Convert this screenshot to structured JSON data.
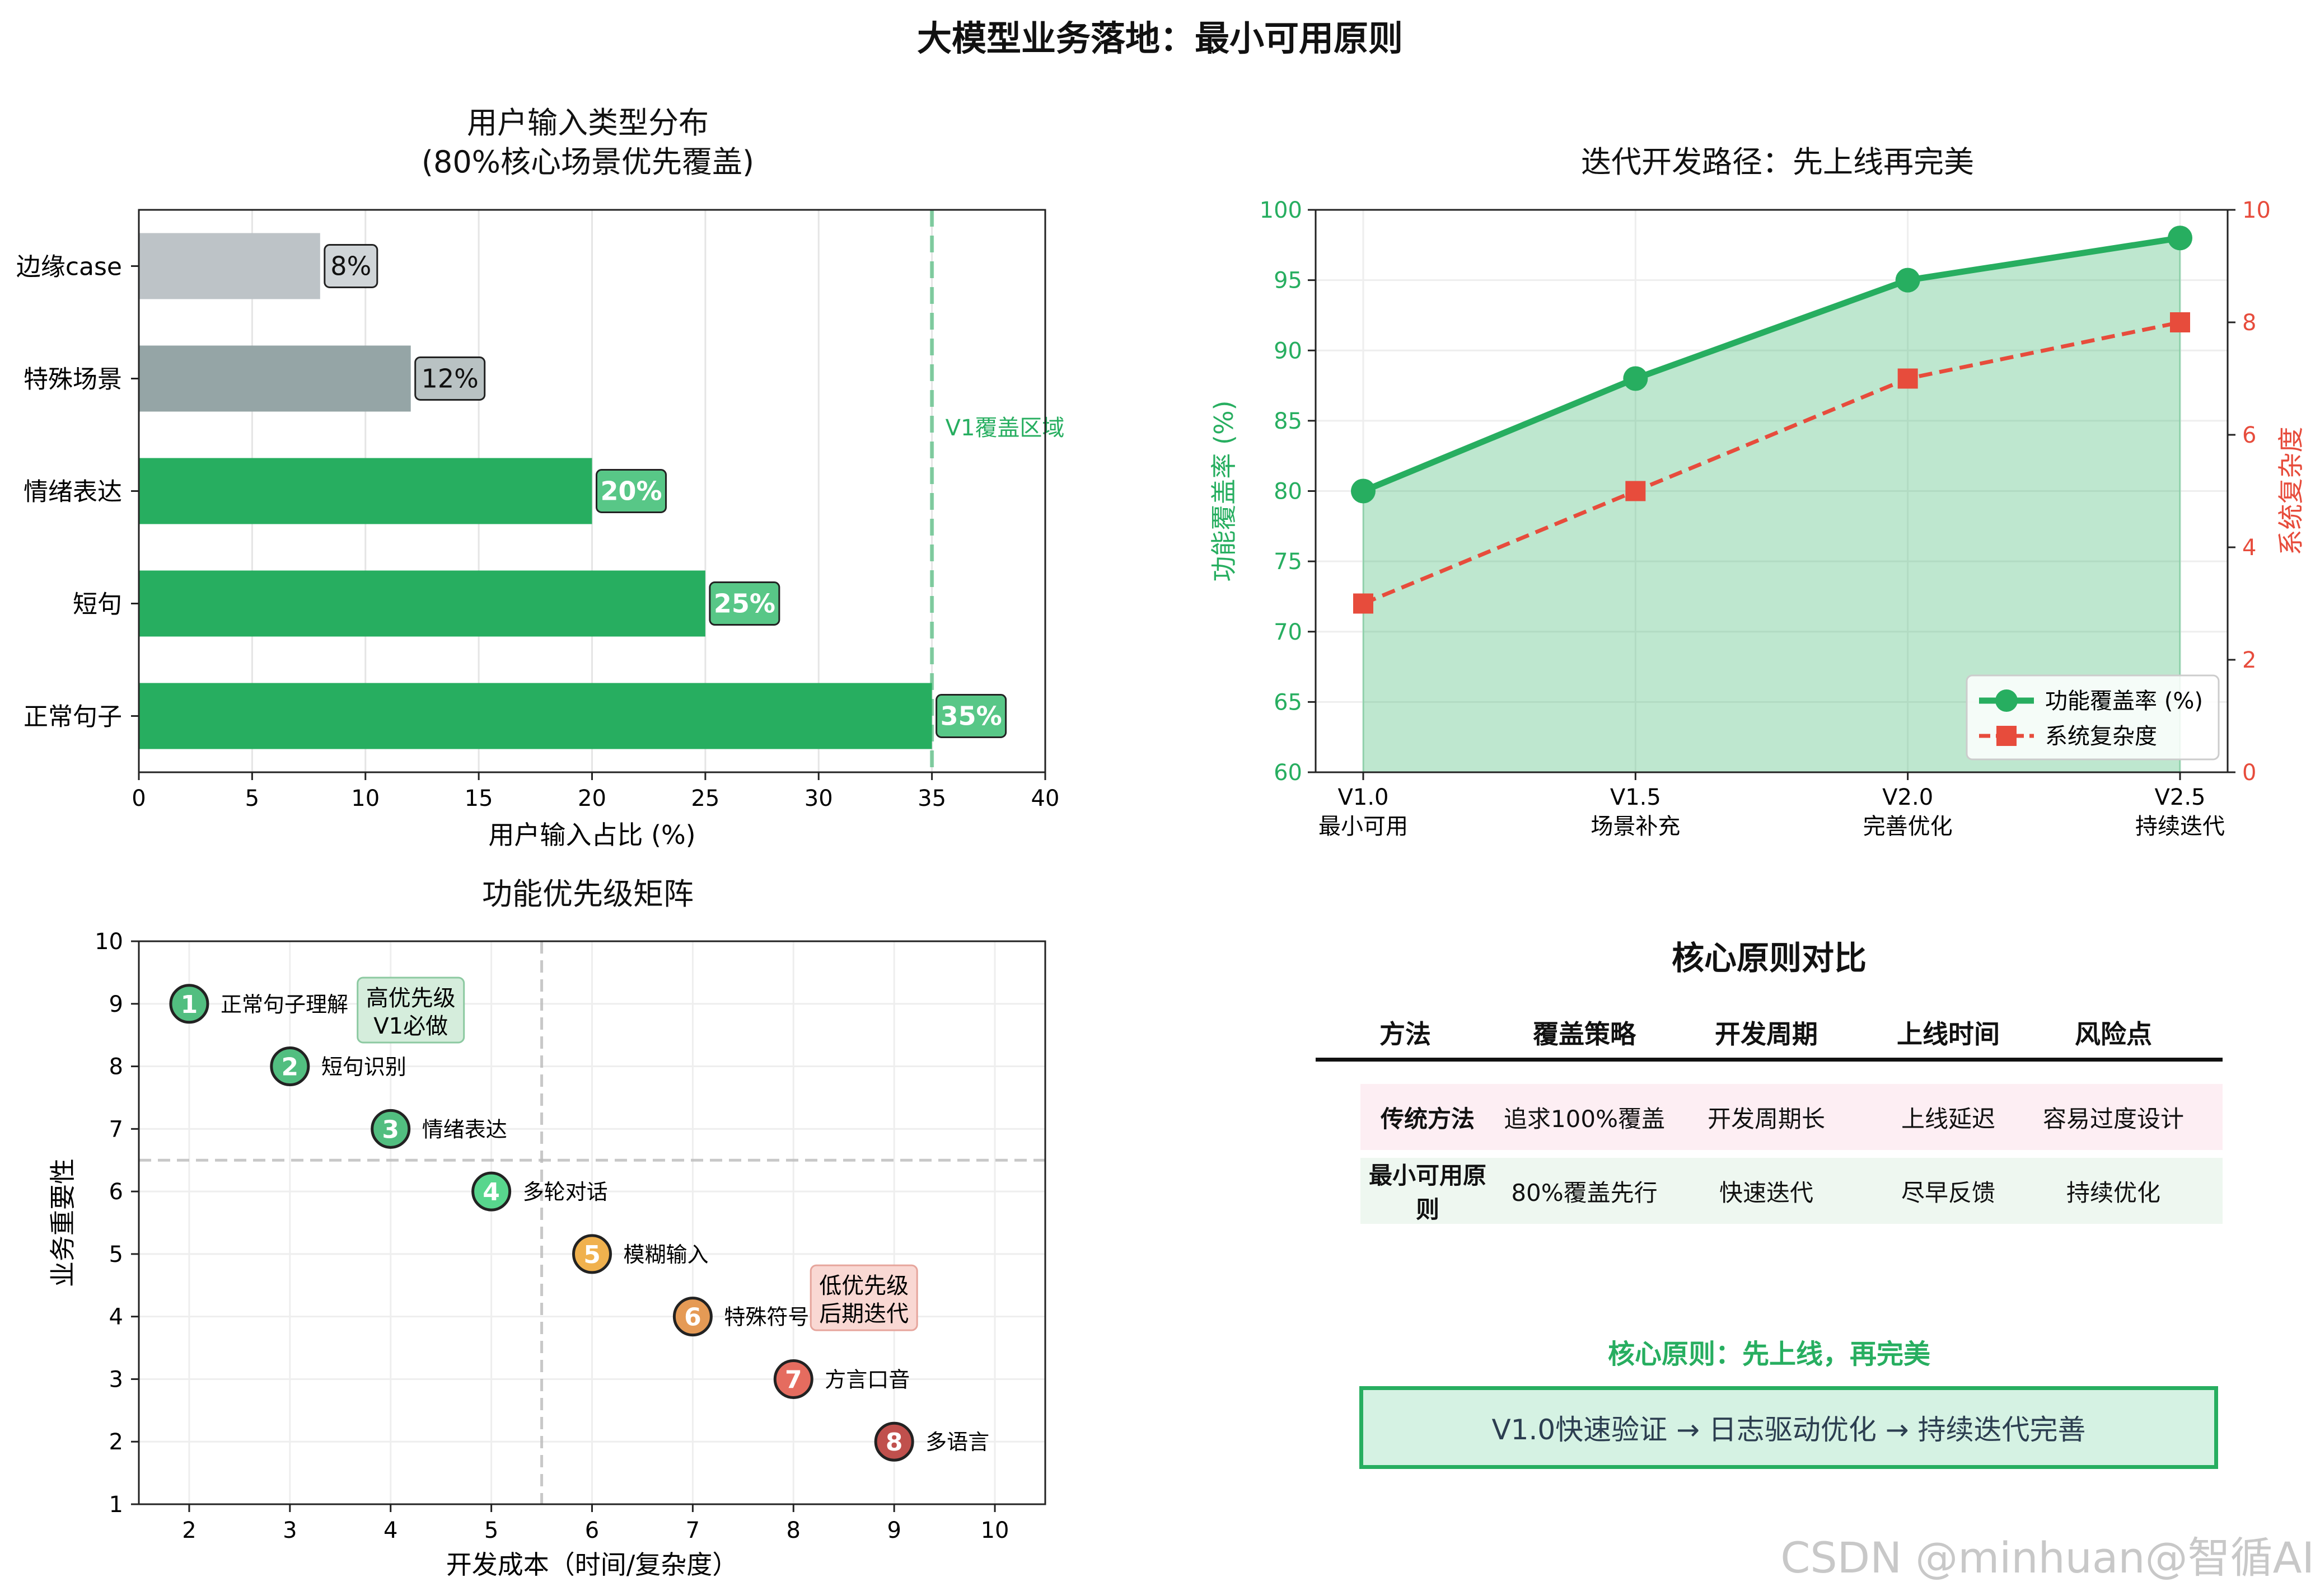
{
  "suptitle": "大模型业务落地：最小可用原则",
  "watermark": "CSDN @minhuan@智循AI",
  "chart_data": [
    {
      "type": "bar",
      "orientation": "horizontal",
      "title": "用户输入类型分布\n(80%核心场景优先覆盖)",
      "xlabel": "用户输入占比 (%)",
      "xlim": [
        0,
        40
      ],
      "xticks": [
        0,
        5,
        10,
        15,
        20,
        25,
        30,
        35,
        40
      ],
      "categories": [
        "正常句子",
        "短句",
        "情绪表达",
        "特殊场景",
        "边缘case"
      ],
      "values": [
        35,
        25,
        20,
        12,
        8
      ],
      "value_labels": [
        "35%",
        "25%",
        "20%",
        "12%",
        "8%"
      ],
      "colors": [
        "#27ae60",
        "#27ae60",
        "#27ae60",
        "#95a5a6",
        "#bdc3c7"
      ],
      "label_box_colors": [
        "#58c787",
        "#58c787",
        "#58c787",
        "#b9c2c3",
        "#d0d5d8"
      ],
      "label_text_colors": [
        "#ffffff",
        "#ffffff",
        "#ffffff",
        "#111111",
        "#111111"
      ],
      "vline": {
        "x": 35,
        "label": "V1覆盖区域",
        "color": "#27ae60"
      },
      "grid": "x"
    },
    {
      "type": "line",
      "title": "迭代开发路径：先上线再完美",
      "categories": [
        "V1.0\n最小可用",
        "V1.5\n场景补充",
        "V2.0\n完善优化",
        "V2.5\n持续迭代"
      ],
      "series": [
        {
          "name": "功能覆盖率 (%)",
          "values": [
            80,
            88,
            95,
            98
          ],
          "color": "#27ae60",
          "axis": "left",
          "marker": "circle",
          "fill": true
        },
        {
          "name": "系统复杂度",
          "values": [
            3,
            5,
            7,
            8
          ],
          "color": "#e74c3c",
          "axis": "right",
          "marker": "square",
          "dashed": true
        }
      ],
      "ylabel_left": "功能覆盖率 (%)",
      "ylim_left": [
        60,
        100
      ],
      "yticks_left": [
        60,
        65,
        70,
        75,
        80,
        85,
        90,
        95,
        100
      ],
      "ylabel_right": "系统复杂度",
      "ylim_right": [
        0,
        10
      ],
      "yticks_right": [
        0,
        2,
        4,
        6,
        8,
        10
      ],
      "legend": "lower-right",
      "grid": true
    },
    {
      "type": "scatter",
      "title": "功能优先级矩阵",
      "xlabel": "开发成本（时间/复杂度）",
      "ylabel": "业务重要性",
      "xlim": [
        1.5,
        10.5
      ],
      "ylim": [
        1,
        10
      ],
      "xticks": [
        2,
        3,
        4,
        5,
        6,
        7,
        8,
        9,
        10
      ],
      "yticks": [
        1,
        2,
        3,
        4,
        5,
        6,
        7,
        8,
        9,
        10
      ],
      "points": [
        {
          "n": "1",
          "x": 2,
          "y": 9,
          "label": "正常句子理解",
          "color": "#52be80"
        },
        {
          "n": "2",
          "x": 3,
          "y": 8,
          "label": "短句识别",
          "color": "#52be80"
        },
        {
          "n": "3",
          "x": 4,
          "y": 7,
          "label": "情绪表达",
          "color": "#52be80"
        },
        {
          "n": "4",
          "x": 5,
          "y": 6,
          "label": "多轮对话",
          "color": "#58d68d"
        },
        {
          "n": "5",
          "x": 6,
          "y": 5,
          "label": "模糊输入",
          "color": "#f0b14e"
        },
        {
          "n": "6",
          "x": 7,
          "y": 4,
          "label": "特殊符号",
          "color": "#e59a55"
        },
        {
          "n": "7",
          "x": 8,
          "y": 3,
          "label": "方言口音",
          "color": "#e56c5f"
        },
        {
          "n": "8",
          "x": 9,
          "y": 2,
          "label": "多语言",
          "color": "#c0504d"
        }
      ],
      "divider_x": 5.5,
      "divider_y": 6.5,
      "annotations": [
        {
          "text": "高优先级\nV1必做",
          "x": 4.2,
          "y": 8.9,
          "bg": "#d5eddc",
          "border": "#8cc9a1"
        },
        {
          "text": "低优先级\n后期迭代",
          "x": 8.7,
          "y": 4.3,
          "bg": "#f9d8d3",
          "border": "#e6a59c"
        }
      ],
      "grid": true
    },
    {
      "type": "table",
      "title": "核心原则对比",
      "columns": [
        "方法",
        "覆盖策略",
        "开发周期",
        "上线时间",
        "风险点"
      ],
      "rows": [
        {
          "cells": [
            "传统方法",
            "追求100%覆盖",
            "开发周期长",
            "上线延迟",
            "容易过度设计"
          ],
          "bg": "#fdeef3"
        },
        {
          "cells": [
            "最小可用原则",
            "80%覆盖先行",
            "快速迭代",
            "尽早反馈",
            "持续优化"
          ],
          "bg": "#eef7f0"
        }
      ]
    }
  ],
  "principle": {
    "heading": "核心原则：先上线，再完美",
    "flow": "V1.0快速验证 → 日志驱动优化 → 持续迭代完善"
  }
}
